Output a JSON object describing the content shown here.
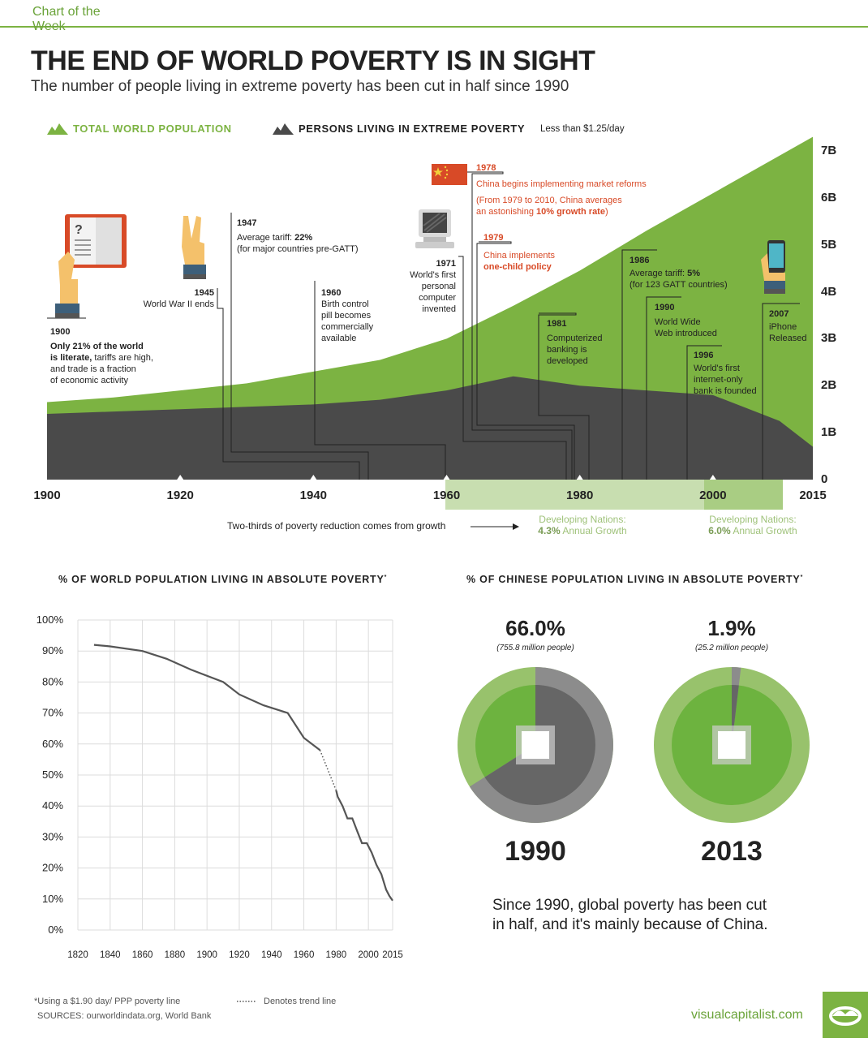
{
  "header": {
    "tag": "Chart of the Week"
  },
  "title": "THE END OF WORLD POVERTY IS IN SIGHT",
  "subtitle": "The number of people living in extreme poverty has been cut in half since 1990",
  "legend": {
    "population": "TOTAL WORLD POPULATION",
    "poverty": "PERSONS LIVING IN EXTREME POVERTY",
    "poverty_note": "Less than $1.25/day"
  },
  "colors": {
    "green": "#7cb342",
    "dark": "#4a4a4a",
    "red": "#d84a27",
    "light_green": "#c8deb0"
  },
  "events": {
    "e1900": {
      "year": "1900",
      "t1": "Only 21% of the world",
      "t2": "is literate,",
      "t3": " tariffs are high,",
      "t4": "and trade is a fraction",
      "t5": "of economic activity"
    },
    "e1945": {
      "year": "1945",
      "text": "World War II ends"
    },
    "e1947": {
      "year": "1947",
      "t1": "Average tariff: ",
      "t1b": "22%",
      "t2": "(for major countries pre-GATT)"
    },
    "e1960": {
      "year": "1960",
      "t1": "Birth control",
      "t2": "pill becomes",
      "t3": "commercially",
      "t4": "available"
    },
    "e1971": {
      "year": "1971",
      "t1": "World's first",
      "t2": "personal",
      "t3": "computer",
      "t4": "invented"
    },
    "e1978": {
      "year": "1978",
      "t1": "China begins implementing market reforms",
      "t2": "(From 1979 to 2010, China averages",
      "t3": "an astonishing ",
      "t3b": "10% growth rate",
      "t3c": ")"
    },
    "e1979": {
      "year": "1979",
      "t1": "China implements",
      "t2": "one-child policy"
    },
    "e1981": {
      "year": "1981",
      "t1": "Computerized",
      "t2": "banking is",
      "t3": "developed"
    },
    "e1986": {
      "year": "1986",
      "t1": "Average tariff: ",
      "t1b": "5%",
      "t2": "(for 123 GATT countries)"
    },
    "e1990": {
      "year": "1990",
      "t1": "World Wide",
      "t2": "Web introduced"
    },
    "e1996": {
      "year": "1996",
      "t1": "World's first",
      "t2": "internet-only",
      "t3": "bank is founded"
    },
    "e2007": {
      "year": "2007",
      "t1": "iPhone",
      "t2": "Released"
    }
  },
  "growth": {
    "note": "Two-thirds of poverty reduction comes from growth",
    "g1_label": "Developing Nations:",
    "g1_value": "4.3%",
    "g1_suffix": " Annual Growth",
    "g2_label": "Developing Nations:",
    "g2_value": "6.0%",
    "g2_suffix": " Annual Growth"
  },
  "chart_data": [
    {
      "type": "area",
      "x": [
        1900,
        1910,
        1920,
        1930,
        1940,
        1950,
        1960,
        1970,
        1980,
        1990,
        2000,
        2010,
        2015
      ],
      "series": [
        {
          "name": "TOTAL WORLD POPULATION",
          "values": [
            1.65,
            1.75,
            1.9,
            2.05,
            2.3,
            2.55,
            3.0,
            3.7,
            4.45,
            5.3,
            6.1,
            6.9,
            7.3
          ]
        },
        {
          "name": "PERSONS LIVING IN EXTREME POVERTY",
          "values": [
            1.4,
            1.45,
            1.5,
            1.55,
            1.6,
            1.7,
            1.9,
            2.2,
            2.0,
            1.9,
            1.8,
            1.25,
            0.7
          ]
        }
      ],
      "y_ticks": [
        "0",
        "1B",
        "2B",
        "3B",
        "4B",
        "5B",
        "6B",
        "7B"
      ],
      "x_ticks": [
        "1900",
        "1920",
        "1940",
        "1960",
        "1980",
        "2000",
        "2015"
      ],
      "ylim": [
        0,
        7.3
      ]
    },
    {
      "type": "line",
      "title": "% OF WORLD POPULATION LIVING IN ABSOLUTE POVERTY",
      "x": [
        1830,
        1840,
        1860,
        1875,
        1890,
        1910,
        1920,
        1935,
        1950,
        1960,
        1970,
        1980,
        1981,
        1984,
        1987,
        1990,
        1993,
        1996,
        1999,
        2002,
        2005,
        2008,
        2011,
        2013,
        2015
      ],
      "values": [
        92,
        91.5,
        90,
        87.5,
        84,
        80,
        76,
        72.5,
        70,
        62,
        58,
        45,
        43,
        40,
        36,
        36,
        32,
        28,
        28,
        25,
        21,
        18,
        13,
        11,
        9.5
      ],
      "trend_segment": [
        1970,
        1980
      ],
      "y_ticks": [
        "0%",
        "10%",
        "20%",
        "30%",
        "40%",
        "50%",
        "60%",
        "70%",
        "80%",
        "90%",
        "100%"
      ],
      "x_ticks": [
        "1820",
        "1840",
        "1860",
        "1880",
        "1900",
        "1920",
        "1940",
        "1960",
        "1980",
        "2000",
        "2015"
      ],
      "ylim": [
        0,
        100
      ]
    },
    {
      "type": "pie",
      "title": "% OF CHINESE POPULATION LIVING IN ABSOLUTE POVERTY",
      "charts": [
        {
          "year": "1990",
          "value": 66.0,
          "label": "66.0%",
          "people": "(755.8 million people)"
        },
        {
          "year": "2013",
          "value": 1.9,
          "label": "1.9%",
          "people": "(25.2 million people)"
        }
      ]
    }
  ],
  "line_title": "% OF WORLD POPULATION LIVING IN ABSOLUTE POVERTY",
  "pie_title": "% OF CHINESE POPULATION LIVING IN ABSOLUTE POVERTY",
  "asterisk": "*",
  "conclusion": {
    "l1": "Since 1990, global poverty has been cut",
    "l2": "in half, and it's mainly because of China."
  },
  "footer": {
    "footnote": "*Using a $1.90 day/ PPP poverty line",
    "trend": "Denotes trend line",
    "sources": "SOURCES: ourworldindata.org, World Bank",
    "brand": "visualcapitalist.com"
  }
}
